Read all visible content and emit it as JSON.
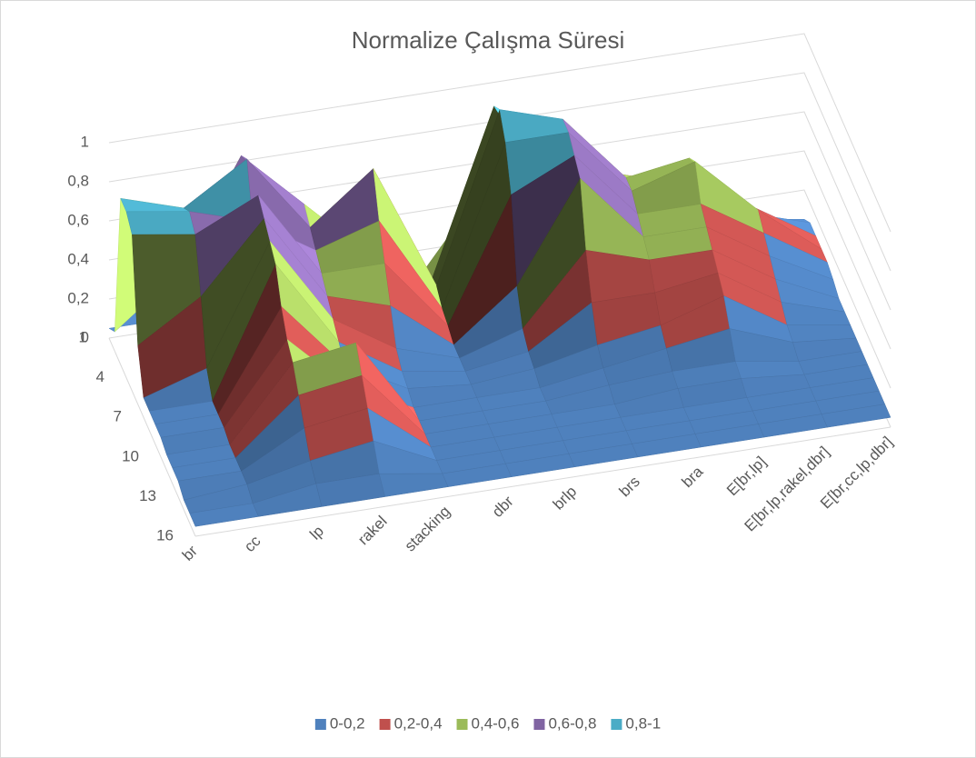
{
  "chart_data": {
    "type": "surface3d",
    "title": "Normalize Çalışma Süresi",
    "categories": [
      "br",
      "cc",
      "lp",
      "rakel",
      "stacking",
      "dbr",
      "brlp",
      "brs",
      "bra",
      "E[br,lp]",
      "E[br,lp,rakel,dbr]",
      "E[br,cc,lp,dbr]"
    ],
    "depth_categories": [
      1,
      null,
      null,
      4,
      null,
      null,
      7,
      null,
      null,
      10,
      null,
      null,
      13,
      null,
      null,
      16
    ],
    "values": [
      [
        0.05,
        0.05,
        0.35,
        0.55,
        0.25,
        0.1,
        0.5,
        0.2,
        0.2,
        0.15,
        0.1,
        0.05
      ],
      [
        0.1,
        0.35,
        0.9,
        0.6,
        0.3,
        0.1,
        0.95,
        0.4,
        0.5,
        0.4,
        0.2,
        0.1
      ],
      [
        0.85,
        0.75,
        0.95,
        0.55,
        0.8,
        0.15,
        1.0,
        0.9,
        0.55,
        0.6,
        0.3,
        0.1
      ],
      [
        0.85,
        0.8,
        0.7,
        0.5,
        0.6,
        0.1,
        0.9,
        0.9,
        0.55,
        0.65,
        0.35,
        0.1
      ],
      [
        0.8,
        0.75,
        0.9,
        0.45,
        0.45,
        0.08,
        0.7,
        0.85,
        0.5,
        0.5,
        0.3,
        0.1
      ],
      [
        0.3,
        0.5,
        0.85,
        0.4,
        0.3,
        0.05,
        0.3,
        0.8,
        0.45,
        0.45,
        0.25,
        0.08
      ],
      [
        0.1,
        0.2,
        0.8,
        0.35,
        0.15,
        0.05,
        0.15,
        0.5,
        0.4,
        0.4,
        0.2,
        0.05
      ],
      [
        0.1,
        0.1,
        0.75,
        0.3,
        0.1,
        0.05,
        0.1,
        0.3,
        0.3,
        0.35,
        0.15,
        0.05
      ],
      [
        0.1,
        0.1,
        0.6,
        0.25,
        0.08,
        0.05,
        0.08,
        0.15,
        0.2,
        0.3,
        0.1,
        0.05
      ],
      [
        0.1,
        0.1,
        0.5,
        0.2,
        0.05,
        0.05,
        0.05,
        0.1,
        0.15,
        0.2,
        0.08,
        0.05
      ],
      [
        0.08,
        0.08,
        0.45,
        0.5,
        0.05,
        0.05,
        0.05,
        0.08,
        0.1,
        0.1,
        0.05,
        0.05
      ],
      [
        0.08,
        0.08,
        0.35,
        0.4,
        0.05,
        0.05,
        0.05,
        0.05,
        0.08,
        0.08,
        0.05,
        0.05
      ],
      [
        0.08,
        0.08,
        0.25,
        0.3,
        0.05,
        0.05,
        0.05,
        0.05,
        0.05,
        0.05,
        0.05,
        0.05
      ],
      [
        0.05,
        0.08,
        0.15,
        0.2,
        0.05,
        0.05,
        0.05,
        0.05,
        0.05,
        0.05,
        0.05,
        0.05
      ],
      [
        0.05,
        0.05,
        0.1,
        0.1,
        0.05,
        0.05,
        0.05,
        0.05,
        0.05,
        0.05,
        0.05,
        0.05
      ],
      [
        0.05,
        0.05,
        0.05,
        0.05,
        0.05,
        0.05,
        0.05,
        0.05,
        0.05,
        0.05,
        0.05,
        0.05
      ]
    ],
    "zlim": [
      0,
      1
    ],
    "zticks": [
      0,
      {
        "value": 0.2,
        "label": "0,2"
      },
      {
        "value": 0.4,
        "label": "0,4"
      },
      {
        "value": 0.6,
        "label": "0,6"
      },
      {
        "value": 0.8,
        "label": "0,8"
      },
      1
    ],
    "bands": [
      {
        "name": "0-0,2",
        "color": "#4f81bd"
      },
      {
        "name": "0,2-0,4",
        "color": "#c0504d"
      },
      {
        "name": "0,4-0,6",
        "color": "#9bbb59"
      },
      {
        "name": "0,6-0,8",
        "color": "#8064a2"
      },
      {
        "name": "0,8-1",
        "color": "#4bacc6"
      }
    ],
    "grid": true,
    "legend": "bottom"
  }
}
